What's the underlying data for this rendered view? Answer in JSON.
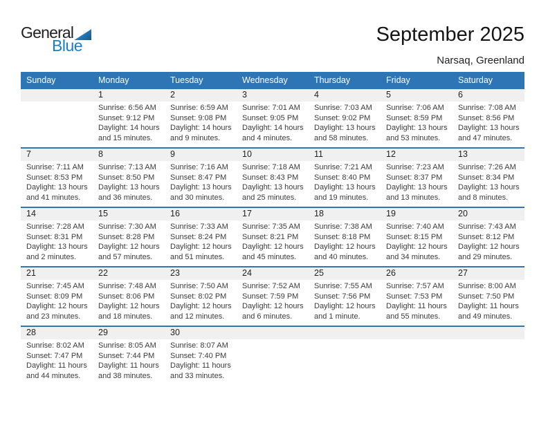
{
  "logo": {
    "general": "General",
    "blue": "Blue"
  },
  "title": "September 2025",
  "subtitle": "Narsaq, Greenland",
  "weekday_headers": [
    "Sunday",
    "Monday",
    "Tuesday",
    "Wednesday",
    "Thursday",
    "Friday",
    "Saturday"
  ],
  "colors": {
    "header_blue": "#2e75b6",
    "row_line_blue": "#2e75b6",
    "band_gray": "#f0f0f0",
    "logo_blue": "#1b7ec3"
  },
  "weeks": [
    [
      {
        "day": "",
        "sunrise": "",
        "sunset": "",
        "daylight1": "",
        "daylight2": ""
      },
      {
        "day": "1",
        "sunrise": "Sunrise: 6:56 AM",
        "sunset": "Sunset: 9:12 PM",
        "daylight1": "Daylight: 14 hours",
        "daylight2": "and 15 minutes."
      },
      {
        "day": "2",
        "sunrise": "Sunrise: 6:59 AM",
        "sunset": "Sunset: 9:08 PM",
        "daylight1": "Daylight: 14 hours",
        "daylight2": "and 9 minutes."
      },
      {
        "day": "3",
        "sunrise": "Sunrise: 7:01 AM",
        "sunset": "Sunset: 9:05 PM",
        "daylight1": "Daylight: 14 hours",
        "daylight2": "and 4 minutes."
      },
      {
        "day": "4",
        "sunrise": "Sunrise: 7:03 AM",
        "sunset": "Sunset: 9:02 PM",
        "daylight1": "Daylight: 13 hours",
        "daylight2": "and 58 minutes."
      },
      {
        "day": "5",
        "sunrise": "Sunrise: 7:06 AM",
        "sunset": "Sunset: 8:59 PM",
        "daylight1": "Daylight: 13 hours",
        "daylight2": "and 53 minutes."
      },
      {
        "day": "6",
        "sunrise": "Sunrise: 7:08 AM",
        "sunset": "Sunset: 8:56 PM",
        "daylight1": "Daylight: 13 hours",
        "daylight2": "and 47 minutes."
      }
    ],
    [
      {
        "day": "7",
        "sunrise": "Sunrise: 7:11 AM",
        "sunset": "Sunset: 8:53 PM",
        "daylight1": "Daylight: 13 hours",
        "daylight2": "and 41 minutes."
      },
      {
        "day": "8",
        "sunrise": "Sunrise: 7:13 AM",
        "sunset": "Sunset: 8:50 PM",
        "daylight1": "Daylight: 13 hours",
        "daylight2": "and 36 minutes."
      },
      {
        "day": "9",
        "sunrise": "Sunrise: 7:16 AM",
        "sunset": "Sunset: 8:47 PM",
        "daylight1": "Daylight: 13 hours",
        "daylight2": "and 30 minutes."
      },
      {
        "day": "10",
        "sunrise": "Sunrise: 7:18 AM",
        "sunset": "Sunset: 8:43 PM",
        "daylight1": "Daylight: 13 hours",
        "daylight2": "and 25 minutes."
      },
      {
        "day": "11",
        "sunrise": "Sunrise: 7:21 AM",
        "sunset": "Sunset: 8:40 PM",
        "daylight1": "Daylight: 13 hours",
        "daylight2": "and 19 minutes."
      },
      {
        "day": "12",
        "sunrise": "Sunrise: 7:23 AM",
        "sunset": "Sunset: 8:37 PM",
        "daylight1": "Daylight: 13 hours",
        "daylight2": "and 13 minutes."
      },
      {
        "day": "13",
        "sunrise": "Sunrise: 7:26 AM",
        "sunset": "Sunset: 8:34 PM",
        "daylight1": "Daylight: 13 hours",
        "daylight2": "and 8 minutes."
      }
    ],
    [
      {
        "day": "14",
        "sunrise": "Sunrise: 7:28 AM",
        "sunset": "Sunset: 8:31 PM",
        "daylight1": "Daylight: 13 hours",
        "daylight2": "and 2 minutes."
      },
      {
        "day": "15",
        "sunrise": "Sunrise: 7:30 AM",
        "sunset": "Sunset: 8:28 PM",
        "daylight1": "Daylight: 12 hours",
        "daylight2": "and 57 minutes."
      },
      {
        "day": "16",
        "sunrise": "Sunrise: 7:33 AM",
        "sunset": "Sunset: 8:24 PM",
        "daylight1": "Daylight: 12 hours",
        "daylight2": "and 51 minutes."
      },
      {
        "day": "17",
        "sunrise": "Sunrise: 7:35 AM",
        "sunset": "Sunset: 8:21 PM",
        "daylight1": "Daylight: 12 hours",
        "daylight2": "and 45 minutes."
      },
      {
        "day": "18",
        "sunrise": "Sunrise: 7:38 AM",
        "sunset": "Sunset: 8:18 PM",
        "daylight1": "Daylight: 12 hours",
        "daylight2": "and 40 minutes."
      },
      {
        "day": "19",
        "sunrise": "Sunrise: 7:40 AM",
        "sunset": "Sunset: 8:15 PM",
        "daylight1": "Daylight: 12 hours",
        "daylight2": "and 34 minutes."
      },
      {
        "day": "20",
        "sunrise": "Sunrise: 7:43 AM",
        "sunset": "Sunset: 8:12 PM",
        "daylight1": "Daylight: 12 hours",
        "daylight2": "and 29 minutes."
      }
    ],
    [
      {
        "day": "21",
        "sunrise": "Sunrise: 7:45 AM",
        "sunset": "Sunset: 8:09 PM",
        "daylight1": "Daylight: 12 hours",
        "daylight2": "and 23 minutes."
      },
      {
        "day": "22",
        "sunrise": "Sunrise: 7:48 AM",
        "sunset": "Sunset: 8:06 PM",
        "daylight1": "Daylight: 12 hours",
        "daylight2": "and 18 minutes."
      },
      {
        "day": "23",
        "sunrise": "Sunrise: 7:50 AM",
        "sunset": "Sunset: 8:02 PM",
        "daylight1": "Daylight: 12 hours",
        "daylight2": "and 12 minutes."
      },
      {
        "day": "24",
        "sunrise": "Sunrise: 7:52 AM",
        "sunset": "Sunset: 7:59 PM",
        "daylight1": "Daylight: 12 hours",
        "daylight2": "and 6 minutes."
      },
      {
        "day": "25",
        "sunrise": "Sunrise: 7:55 AM",
        "sunset": "Sunset: 7:56 PM",
        "daylight1": "Daylight: 12 hours",
        "daylight2": "and 1 minute."
      },
      {
        "day": "26",
        "sunrise": "Sunrise: 7:57 AM",
        "sunset": "Sunset: 7:53 PM",
        "daylight1": "Daylight: 11 hours",
        "daylight2": "and 55 minutes."
      },
      {
        "day": "27",
        "sunrise": "Sunrise: 8:00 AM",
        "sunset": "Sunset: 7:50 PM",
        "daylight1": "Daylight: 11 hours",
        "daylight2": "and 49 minutes."
      }
    ],
    [
      {
        "day": "28",
        "sunrise": "Sunrise: 8:02 AM",
        "sunset": "Sunset: 7:47 PM",
        "daylight1": "Daylight: 11 hours",
        "daylight2": "and 44 minutes."
      },
      {
        "day": "29",
        "sunrise": "Sunrise: 8:05 AM",
        "sunset": "Sunset: 7:44 PM",
        "daylight1": "Daylight: 11 hours",
        "daylight2": "and 38 minutes."
      },
      {
        "day": "30",
        "sunrise": "Sunrise: 8:07 AM",
        "sunset": "Sunset: 7:40 PM",
        "daylight1": "Daylight: 11 hours",
        "daylight2": "and 33 minutes."
      },
      {
        "day": "",
        "sunrise": "",
        "sunset": "",
        "daylight1": "",
        "daylight2": ""
      },
      {
        "day": "",
        "sunrise": "",
        "sunset": "",
        "daylight1": "",
        "daylight2": ""
      },
      {
        "day": "",
        "sunrise": "",
        "sunset": "",
        "daylight1": "",
        "daylight2": ""
      },
      {
        "day": "",
        "sunrise": "",
        "sunset": "",
        "daylight1": "",
        "daylight2": ""
      }
    ]
  ]
}
